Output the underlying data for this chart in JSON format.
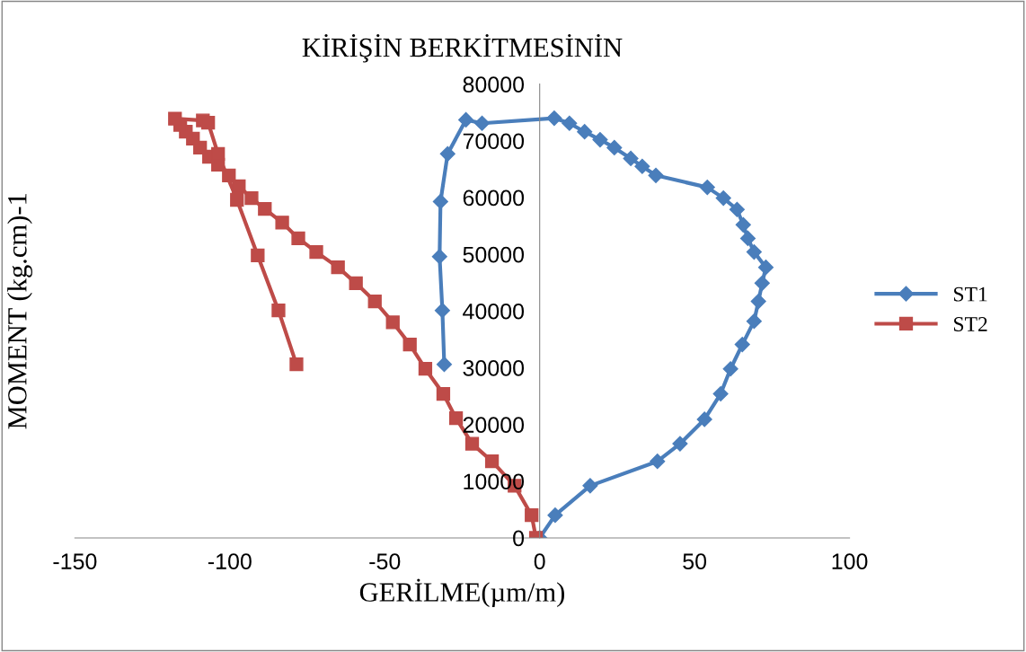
{
  "chart_data": {
    "type": "line",
    "title": "KİRİŞİN BERKİTMESİNİN",
    "xlabel": "GERİLME(µm/m)",
    "ylabel": "MOMENT (kg.cm)-1",
    "xlim": [
      -150,
      100
    ],
    "xticks": [
      -150,
      -100,
      -50,
      0,
      50,
      100
    ],
    "ylim": [
      0,
      80000
    ],
    "yticks": [
      0,
      10000,
      20000,
      30000,
      40000,
      50000,
      60000,
      70000,
      80000
    ],
    "grid": false,
    "legend": "right",
    "line_style": "solid",
    "series": [
      {
        "name": "ST1",
        "color": "#4a7ebb",
        "marker": "diamond",
        "x": [
          0,
          5,
          16.3,
          38,
          45.3,
          53.2,
          58.4,
          61.6,
          65.4,
          69.2,
          70.6,
          71.8,
          73,
          69.2,
          67.2,
          65.7,
          63.7,
          59.3,
          54.1,
          37.5,
          33.1,
          29.4,
          24.1,
          19.5,
          14.5,
          9.6,
          4.7,
          -18.6,
          -23.8,
          -29.7,
          -32,
          -32.3,
          -31.4,
          -30.8
        ],
        "values": [
          0,
          4000,
          9200,
          13500,
          16600,
          20900,
          25400,
          29800,
          34100,
          38200,
          41700,
          44900,
          47700,
          50400,
          52800,
          55200,
          57900,
          59900,
          61800,
          63900,
          65500,
          66900,
          68800,
          70200,
          71600,
          73100,
          74000,
          73100,
          73700,
          67700,
          59300,
          49600,
          40100,
          30600
        ]
      },
      {
        "name": "ST2",
        "color": "#be4b48",
        "marker": "square",
        "x": [
          -1.2,
          -2.6,
          -8.1,
          -15.4,
          -21.8,
          -27,
          -31.1,
          -36.9,
          -41.9,
          -47.4,
          -53.2,
          -59.3,
          -65.1,
          -72.1,
          -77.9,
          -83.1,
          -88.7,
          -93,
          -97.1,
          -100.3,
          -103.8,
          -106.7,
          -109.6,
          -111.9,
          -114.2,
          -116,
          -117.7,
          -108.7,
          -107,
          -103.8,
          -97.7,
          -91,
          -84.3,
          -78.5
        ],
        "values": [
          0,
          4000,
          9200,
          13500,
          16600,
          21100,
          25400,
          29800,
          34100,
          38000,
          41700,
          44900,
          47700,
          50400,
          52800,
          55600,
          58000,
          59900,
          62000,
          63900,
          65800,
          67200,
          68800,
          70400,
          71600,
          72800,
          73900,
          73600,
          73200,
          67700,
          59600,
          49800,
          40100,
          30600
        ]
      }
    ]
  }
}
